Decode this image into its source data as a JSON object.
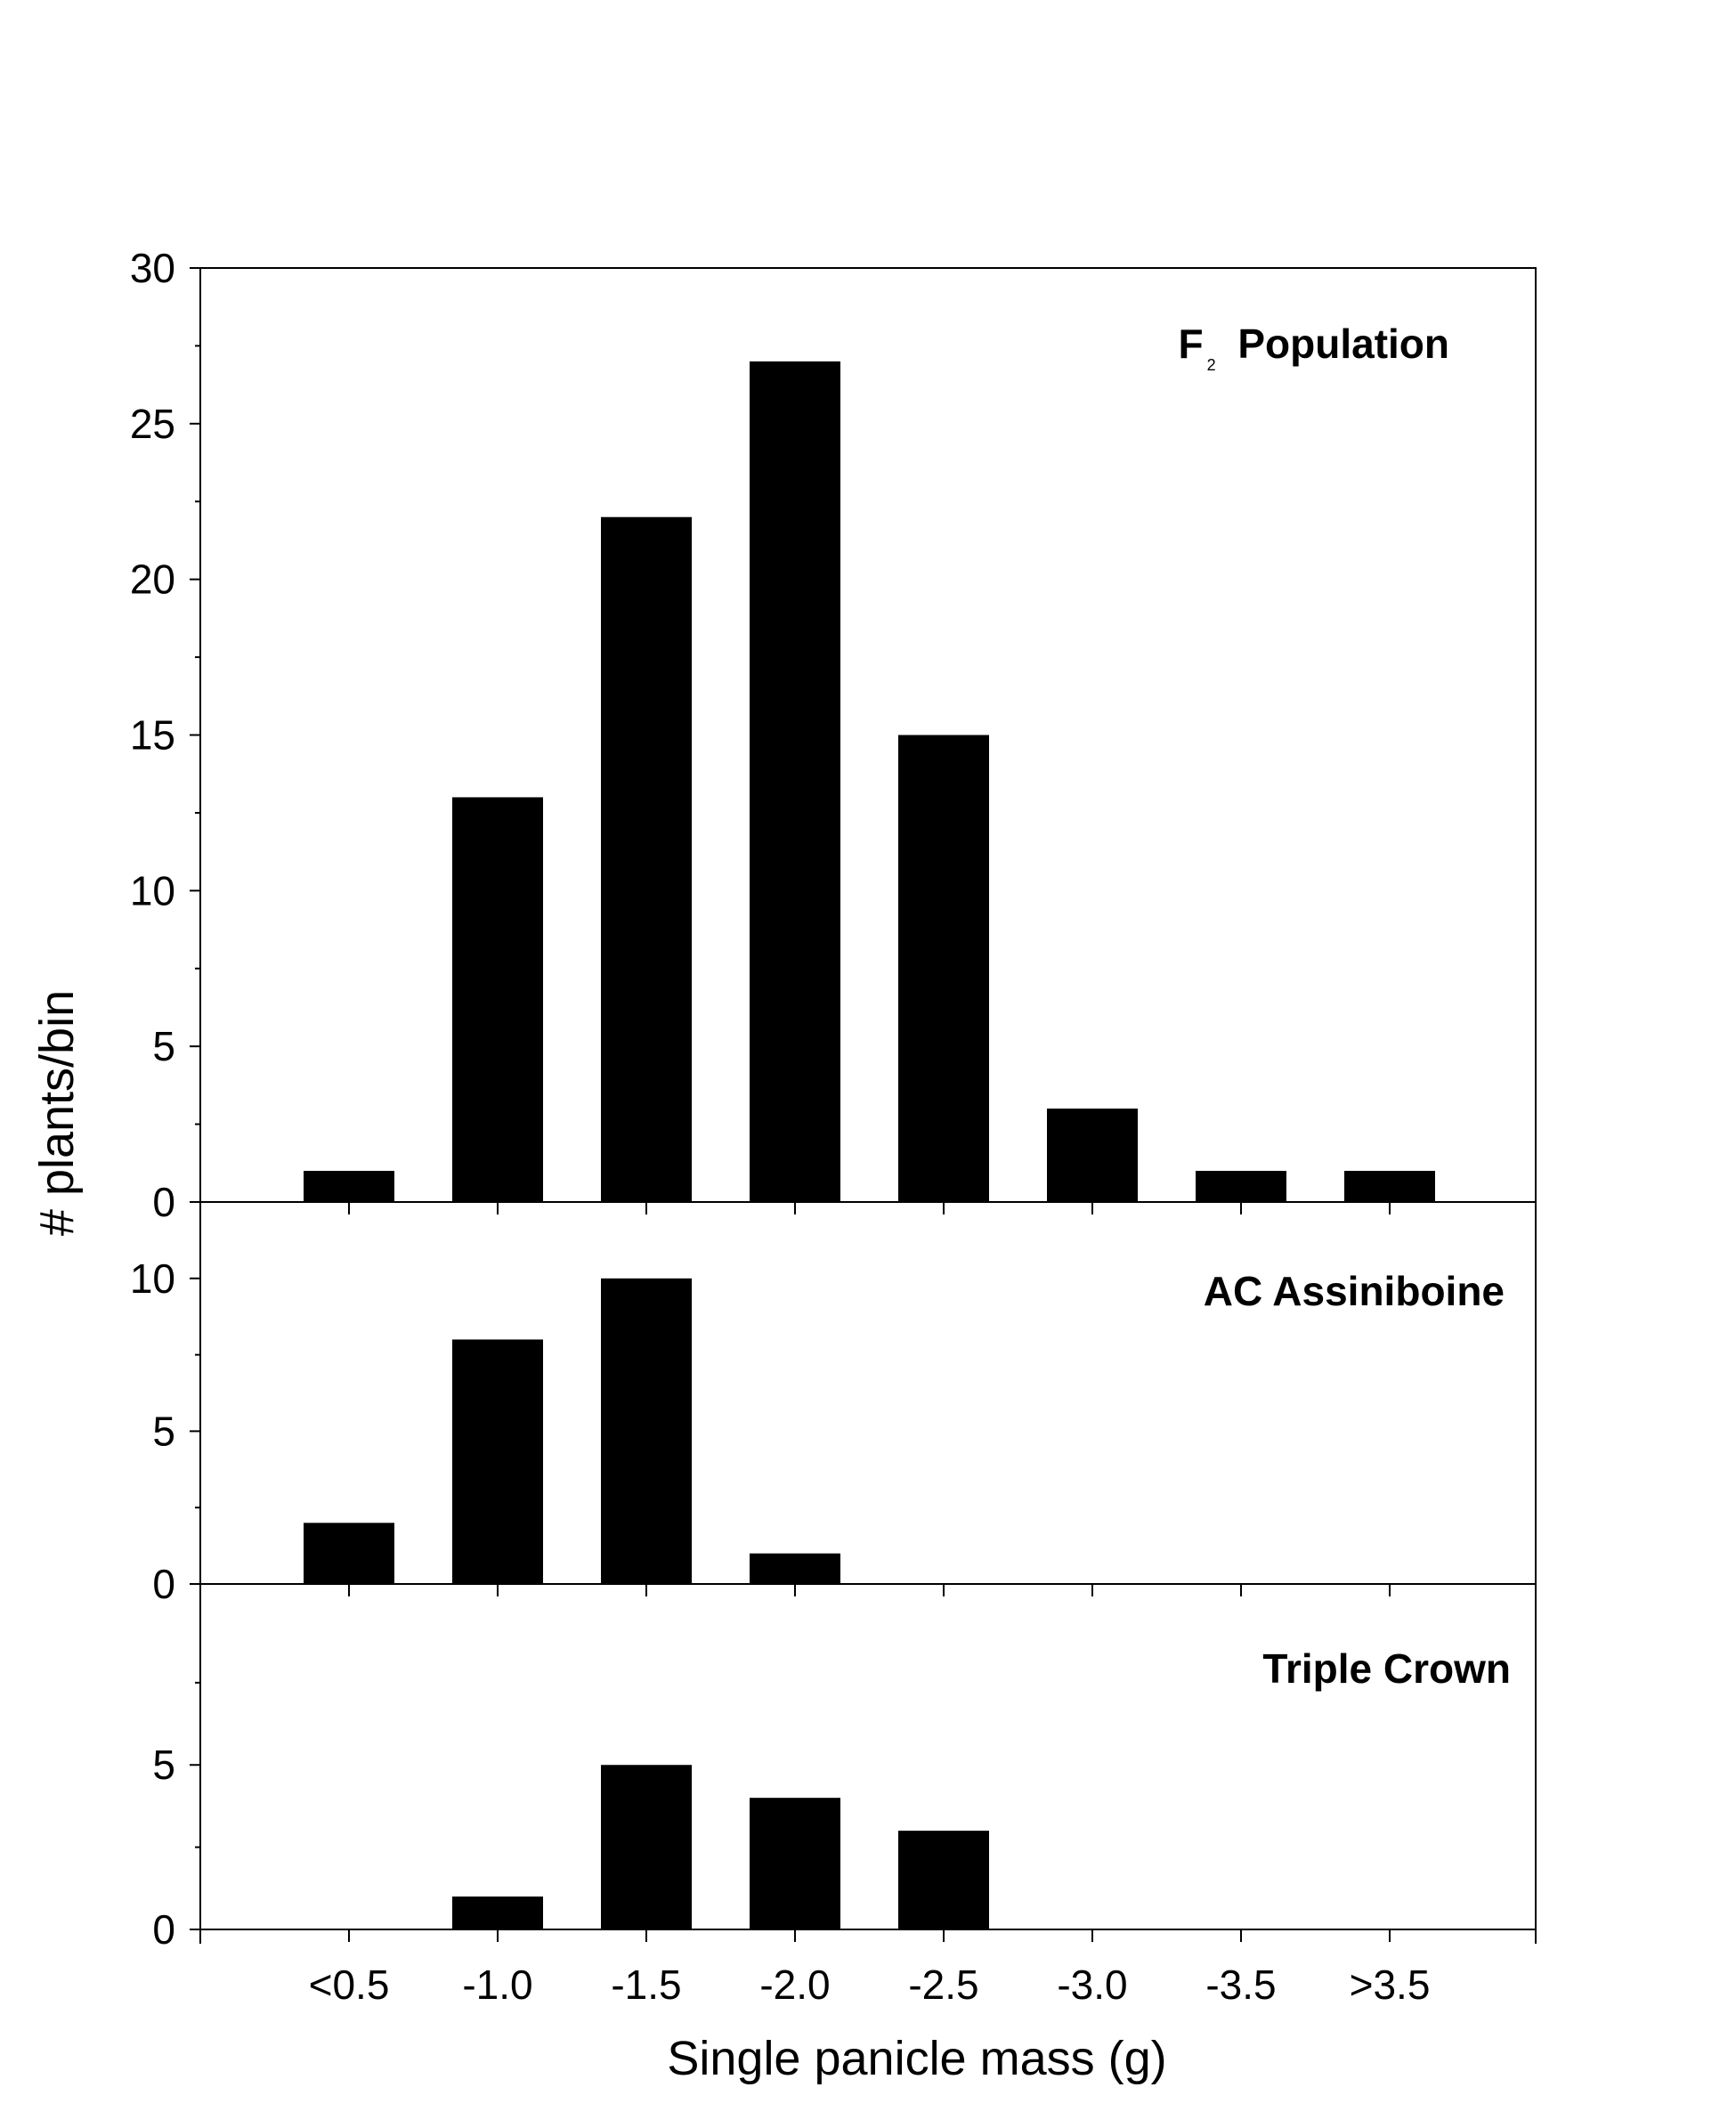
{
  "colors": {
    "bar": "#000000",
    "axis": "#000000",
    "background": "#ffffff"
  },
  "chart_data": {
    "type": "bar",
    "xlabel": "Single panicle mass (g)",
    "ylabel": "# plants/bin",
    "categories": [
      "<0.5",
      "-1.0",
      "-1.5",
      "-2.0",
      "-2.5",
      "-3.0",
      "-3.5",
      ">3.5"
    ],
    "panels": [
      {
        "title": "F",
        "title_subscript": "2",
        "title_rest": "Population",
        "ylim": [
          0,
          30
        ],
        "yticks": [
          0,
          5,
          10,
          15,
          20,
          25,
          30
        ],
        "values": [
          1,
          13,
          22,
          27,
          15,
          3,
          1,
          1
        ]
      },
      {
        "title": "AC Assiniboine",
        "ylim": [
          0,
          12.5
        ],
        "yticks": [
          0,
          5,
          10
        ],
        "values": [
          2,
          8,
          10,
          1,
          0,
          0,
          0,
          0
        ]
      },
      {
        "title": "Triple Crown",
        "ylim": [
          0,
          10.5
        ],
        "yticks": [
          0,
          5
        ],
        "values": [
          0,
          1,
          5,
          4,
          3,
          0,
          0,
          0
        ]
      }
    ]
  }
}
